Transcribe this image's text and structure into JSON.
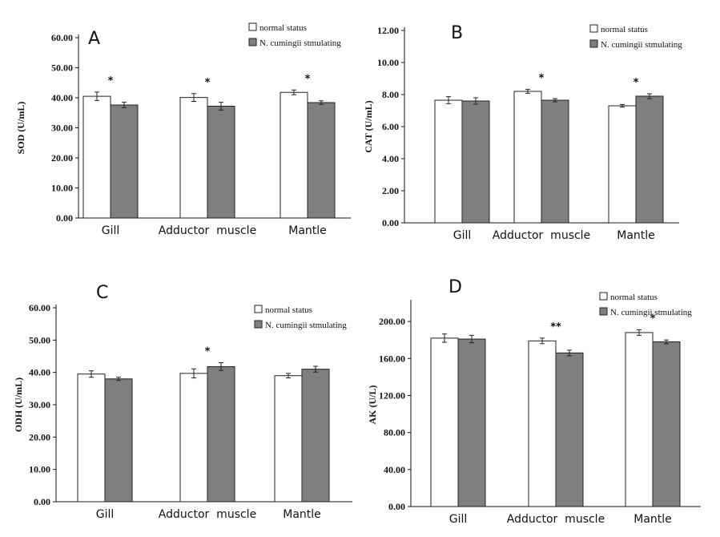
{
  "colors": {
    "normal": "#ffffff",
    "stimulating": "#7f7f7f",
    "stroke": "#222222"
  },
  "chart_data": [
    {
      "type": "bar",
      "panel": "A",
      "ylabel": "SOD (U/mL)",
      "ylim": [
        0,
        60
      ],
      "yticks": [
        "0.00",
        "10.00",
        "20.00",
        "30.00",
        "40.00",
        "50.00",
        "60.00"
      ],
      "categories": [
        "Gill",
        "Adductor  muscle",
        "Mantle"
      ],
      "legend": [
        "normal status",
        "N. cumingii stmulating"
      ],
      "series": [
        {
          "name": "normal status",
          "values": [
            40.5,
            40.1,
            41.8
          ],
          "errors": [
            1.4,
            1.3,
            0.8
          ]
        },
        {
          "name": "N. cumingii stmulating",
          "values": [
            37.6,
            37.2,
            38.4
          ],
          "errors": [
            0.9,
            1.3,
            0.6
          ]
        }
      ],
      "annotations": [
        "*",
        "*",
        "*"
      ]
    },
    {
      "type": "bar",
      "panel": "B",
      "ylabel": "CAT (U/mL)",
      "ylim": [
        0,
        12
      ],
      "yticks": [
        "0.00",
        "2.00",
        "4.00",
        "6.00",
        "8.00",
        "10.00",
        "12.00"
      ],
      "categories": [
        "Gill",
        "Adductor  muscle",
        "Mantle"
      ],
      "legend": [
        "normal status",
        "N. cumingii stmulating"
      ],
      "series": [
        {
          "name": "normal status",
          "values": [
            7.65,
            8.2,
            7.3
          ],
          "errors": [
            0.22,
            0.12,
            0.08
          ]
        },
        {
          "name": "N. cumingii stmulating",
          "values": [
            7.6,
            7.65,
            7.9
          ],
          "errors": [
            0.2,
            0.1,
            0.15
          ]
        }
      ],
      "annotations": [
        "",
        "*",
        "*"
      ]
    },
    {
      "type": "bar",
      "panel": "C",
      "ylabel": "ODH (U/mL)",
      "ylim": [
        0,
        60
      ],
      "yticks": [
        "0.00",
        "10.00",
        "20.00",
        "30.00",
        "40.00",
        "50.00",
        "60.00"
      ],
      "categories": [
        "Gill",
        "Adductor  muscle",
        "Mantle"
      ],
      "legend": [
        "normal status",
        "N. cumingii stmulating"
      ],
      "series": [
        {
          "name": "normal status",
          "values": [
            39.5,
            39.7,
            39.0
          ],
          "errors": [
            1.0,
            1.4,
            0.7
          ]
        },
        {
          "name": "N. cumingii stmulating",
          "values": [
            38.0,
            41.8,
            41.0
          ],
          "errors": [
            0.5,
            1.2,
            0.9
          ]
        }
      ],
      "annotations": [
        "",
        "*",
        ""
      ]
    },
    {
      "type": "bar",
      "panel": "D",
      "ylabel": "AK (U/L)",
      "ylim": [
        0,
        220
      ],
      "yticks": [
        "0.00",
        "40.00",
        "80.00",
        "120.00",
        "160.00",
        "200.00"
      ],
      "categories": [
        "Gill",
        "Adductor  muscle",
        "Mantle"
      ],
      "legend": [
        "normal status",
        "N. cumingii stmulating"
      ],
      "series": [
        {
          "name": "normal status",
          "values": [
            182,
            179,
            188
          ],
          "errors": [
            4.5,
            3.0,
            3.0
          ]
        },
        {
          "name": "N. cumingii stmulating",
          "values": [
            181,
            166,
            178
          ],
          "errors": [
            4.0,
            3.0,
            2.0
          ]
        }
      ],
      "annotations": [
        "",
        "**",
        "*"
      ]
    }
  ]
}
